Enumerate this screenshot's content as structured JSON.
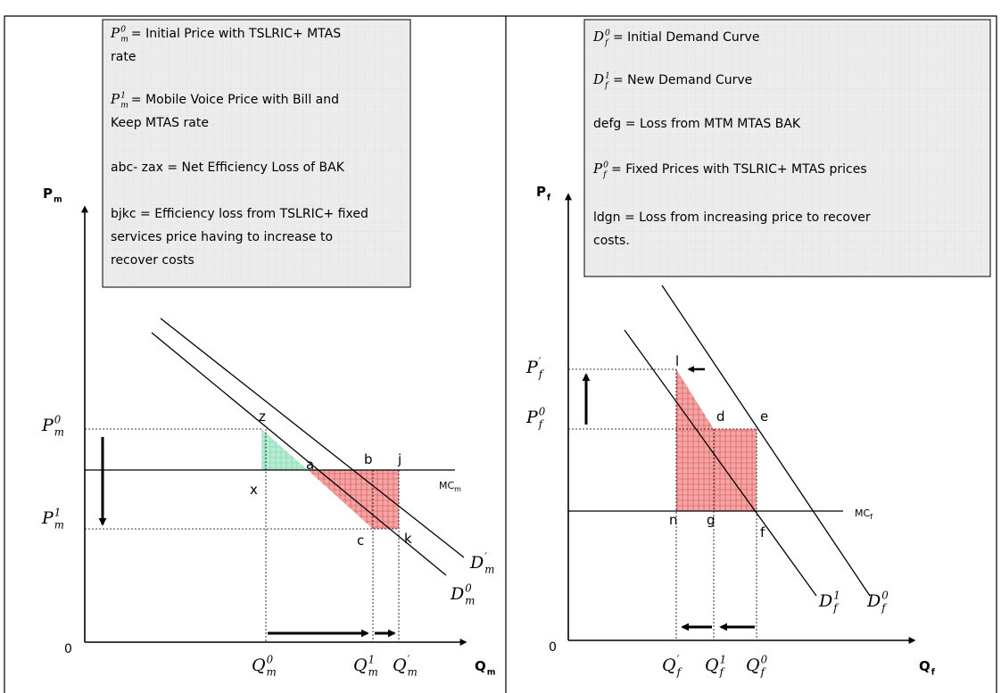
{
  "left": {
    "box": [
      {
        "symbol": {
          "base": "P",
          "sub": "m",
          "sup": "0"
        },
        "lines": [
          "= Initial Price with TSLRIC+ MTAS",
          "rate"
        ]
      },
      {
        "symbol": {
          "base": "P",
          "sub": "m",
          "sup": "1"
        },
        "lines": [
          "= Mobile Voice Price with Bill and",
          "Keep MTAS rate"
        ]
      },
      {
        "lines": [
          "abc- zax = Net Efficiency Loss of BAK"
        ]
      },
      {
        "lines": [
          "bjkc = Efficiency loss from TSLRIC+ fixed",
          "services price having to increase to",
          "recover costs"
        ]
      }
    ],
    "y_axis": {
      "base": "P",
      "sub": "m"
    },
    "x_axis": {
      "base": "Q",
      "sub": "m"
    },
    "origin": "0",
    "mc": {
      "base": "MC",
      "sub": "m"
    },
    "points": [
      "z",
      "a",
      "b",
      "j",
      "x",
      "c",
      "k"
    ],
    "symbols": [
      {
        "base": "P",
        "sub": "m",
        "sup": "0"
      },
      {
        "base": "P",
        "sub": "m",
        "sup": "1"
      },
      {
        "base": "Q",
        "sub": "m",
        "sup": "0"
      },
      {
        "base": "Q",
        "sub": "m",
        "sup": "1"
      },
      {
        "base": "Q",
        "sub": "m",
        "sup": "′"
      },
      {
        "base": "D",
        "sub": "m",
        "sup": "′"
      },
      {
        "base": "D",
        "sub": "m",
        "sup": "0"
      }
    ]
  },
  "right": {
    "box": [
      {
        "symbol": {
          "base": "D",
          "sub": "f",
          "sup": "0"
        },
        "lines": [
          "= Initial Demand Curve"
        ]
      },
      {
        "symbol": {
          "base": "D",
          "sub": "f",
          "sup": "1"
        },
        "lines": [
          "= New Demand Curve"
        ]
      },
      {
        "lines": [
          "defg = Loss from MTM MTAS BAK"
        ]
      },
      {
        "symbol": {
          "base": "P",
          "sub": "f",
          "sup": "0"
        },
        "lines": [
          "= Fixed Prices with TSLRIC+ MTAS prices"
        ]
      },
      {
        "lines": [
          "ldgn  = Loss from increasing price to recover",
          "costs."
        ]
      }
    ],
    "y_axis": {
      "base": "P",
      "sub": "f"
    },
    "x_axis": {
      "base": "Q",
      "sub": "f"
    },
    "origin": "0",
    "mc": {
      "base": "MC",
      "sub": "f"
    },
    "points": [
      "l",
      "d",
      "e",
      "n",
      "g",
      "f"
    ],
    "symbols": [
      {
        "base": "P",
        "sub": "f",
        "sup": "′"
      },
      {
        "base": "P",
        "sub": "f",
        "sup": "0"
      },
      {
        "base": "Q",
        "sub": "f",
        "sup": "′"
      },
      {
        "base": "Q",
        "sub": "f",
        "sup": "1"
      },
      {
        "base": "Q",
        "sub": "f",
        "sup": "0"
      },
      {
        "base": "D",
        "sub": "f",
        "sup": "1"
      },
      {
        "base": "D",
        "sub": "f",
        "sup": "0"
      }
    ]
  }
}
